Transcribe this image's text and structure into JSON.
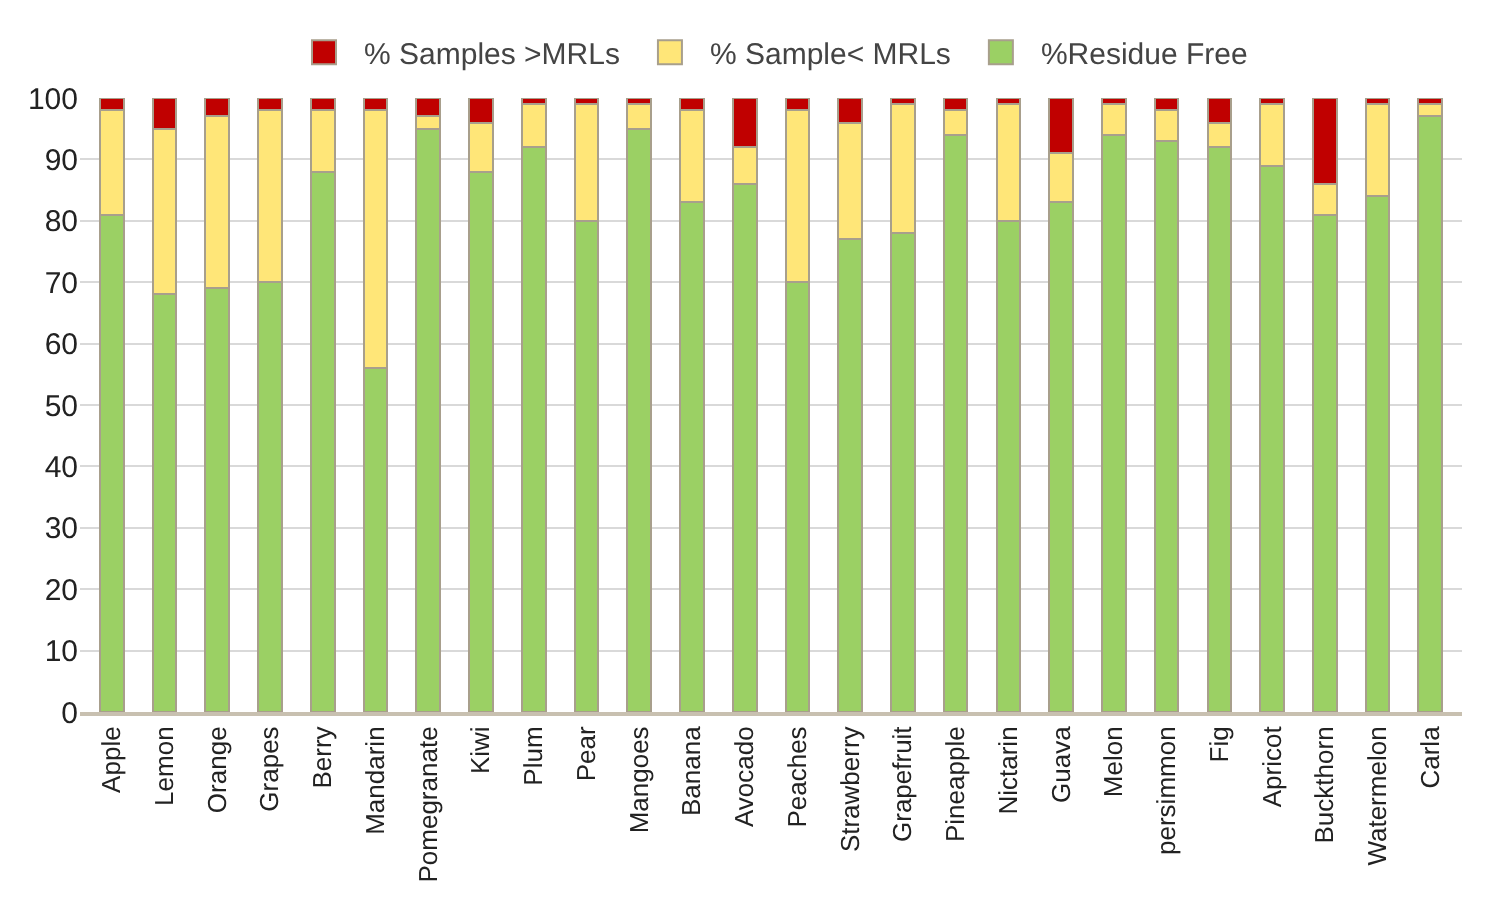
{
  "chart_data": {
    "type": "bar",
    "stacked": true,
    "categories": [
      "Apple",
      "Lemon",
      "Orange",
      "Grapes",
      "Berry",
      "Mandarin",
      "Pomegranate",
      "Kiwi",
      "Plum",
      "Pear",
      "Mangoes",
      "Banana",
      "Avocado",
      "Peaches",
      "Strawberry",
      "Grapefruit",
      "Pineapple",
      "Nictarin",
      "Guava",
      "Melon",
      "persimmon",
      "Fig",
      "Apricot",
      "Buckthorn",
      "Watermelon",
      "Carla"
    ],
    "series": [
      {
        "name": "%Residue Free",
        "color": "#9bd064",
        "values": [
          81,
          68,
          69,
          70,
          88,
          56,
          95,
          88,
          92,
          80,
          95,
          83,
          86,
          70,
          77,
          78,
          94,
          80,
          83,
          94,
          93,
          92,
          89,
          81,
          84,
          97
        ]
      },
      {
        "name": "% Sample< MRLs",
        "color": "#ffe678",
        "values": [
          17,
          27,
          28,
          28,
          10,
          42,
          2,
          8,
          7,
          19,
          4,
          15,
          6,
          28,
          19,
          21,
          4,
          19,
          8,
          5,
          5,
          4,
          10,
          5,
          15,
          2
        ]
      },
      {
        "name": "% Samples >MRLs",
        "color": "#c00000",
        "values": [
          2,
          5,
          3,
          2,
          2,
          2,
          3,
          4,
          1,
          1,
          1,
          2,
          8,
          2,
          4,
          1,
          2,
          1,
          9,
          1,
          2,
          4,
          1,
          14,
          1,
          1
        ]
      }
    ],
    "ylim": [
      0,
      100
    ],
    "yticks": [
      0,
      10,
      20,
      30,
      40,
      50,
      60,
      70,
      80,
      90,
      100
    ],
    "grid": "y",
    "legend": "top"
  }
}
